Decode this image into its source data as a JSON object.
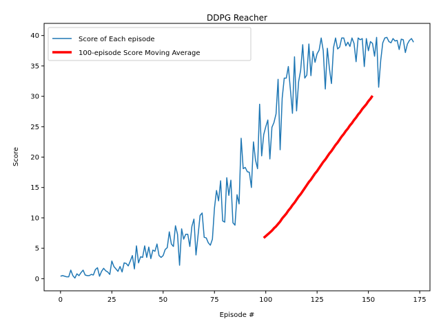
{
  "chart_data": {
    "type": "line",
    "title": "DDPG Reacher",
    "xlabel": "Episode #",
    "ylabel": "Score",
    "xlim": [
      -8,
      180
    ],
    "ylim": [
      -2,
      42
    ],
    "xticks": [
      0,
      25,
      50,
      75,
      100,
      125,
      150,
      175
    ],
    "yticks": [
      0,
      5,
      10,
      15,
      20,
      25,
      30,
      35,
      40
    ],
    "grid": false,
    "legend_position": "upper-left",
    "colors": {
      "episode": "#1f77b4",
      "moving_average": "#ff0000"
    },
    "series": [
      {
        "name": "Score of Each episode",
        "start_x": 0,
        "values": [
          0.4,
          0.5,
          0.4,
          0.3,
          0.3,
          1.4,
          0.5,
          0.1,
          0.8,
          0.5,
          1.0,
          1.4,
          0.6,
          0.5,
          0.5,
          0.7,
          0.6,
          1.5,
          1.8,
          0.4,
          1.2,
          1.7,
          1.3,
          1.1,
          0.7,
          2.9,
          2.0,
          1.6,
          1.2,
          2.0,
          1.1,
          2.6,
          2.5,
          2.1,
          2.9,
          3.8,
          1.6,
          5.4,
          2.6,
          3.6,
          3.5,
          5.4,
          3.5,
          5.2,
          3.3,
          4.7,
          4.5,
          5.7,
          3.8,
          3.5,
          3.8,
          4.8,
          5.1,
          7.7,
          5.7,
          5.3,
          8.7,
          7.3,
          2.2,
          8.2,
          6.5,
          7.3,
          7.3,
          5.3,
          8.6,
          9.8,
          3.9,
          7.1,
          10.4,
          10.8,
          6.8,
          6.7,
          5.9,
          5.5,
          6.5,
          11.6,
          14.5,
          12.8,
          16.1,
          9.5,
          9.3,
          16.6,
          13.7,
          16.2,
          9.2,
          8.8,
          13.8,
          12.3,
          23.1,
          18.1,
          18.3,
          17.6,
          17.5,
          15.0,
          22.5,
          19.5,
          18.1,
          28.7,
          20.2,
          23.7,
          25.0,
          26.1,
          19.7,
          24.9,
          25.7,
          27.1,
          32.8,
          21.2,
          29.7,
          33.0,
          33.0,
          34.9,
          31.1,
          27.2,
          36.5,
          27.6,
          32.4,
          34.3,
          38.5,
          33.0,
          33.5,
          38.6,
          33.4,
          37.4,
          35.6,
          37.0,
          37.6,
          39.6,
          37.5,
          31.2,
          37.9,
          34.6,
          32.1,
          38.0,
          39.6,
          37.8,
          38.1,
          39.6,
          39.6,
          38.3,
          38.9,
          38.2,
          39.6,
          38.7,
          35.7,
          39.6,
          39.3,
          39.5,
          34.9,
          39.5,
          37.5,
          39.0,
          38.7,
          36.6,
          39.7,
          31.5,
          35.9,
          38.8,
          39.6,
          39.7,
          39.0,
          38.8,
          39.5,
          39.1,
          39.2,
          37.7,
          39.4,
          39.3,
          37.2,
          38.6,
          39.2,
          39.5,
          38.9
        ]
      },
      {
        "name": "100-episode Score Moving Average",
        "start_x": 99,
        "values": [
          6.7,
          7.0,
          7.3,
          7.6,
          7.9,
          8.3,
          8.6,
          9.0,
          9.4,
          9.9,
          10.3,
          10.7,
          11.2,
          11.6,
          12.1,
          12.5,
          13.0,
          13.5,
          13.9,
          14.4,
          14.9,
          15.4,
          15.9,
          16.3,
          16.8,
          17.3,
          17.7,
          18.2,
          18.7,
          19.2,
          19.6,
          20.1,
          20.6,
          21.0,
          21.5,
          22.0,
          22.4,
          22.9,
          23.4,
          23.8,
          24.3,
          24.7,
          25.2,
          25.6,
          26.1,
          26.5,
          27.0,
          27.4,
          27.9,
          28.3,
          28.7,
          29.2,
          29.6,
          30.1
        ]
      }
    ]
  }
}
